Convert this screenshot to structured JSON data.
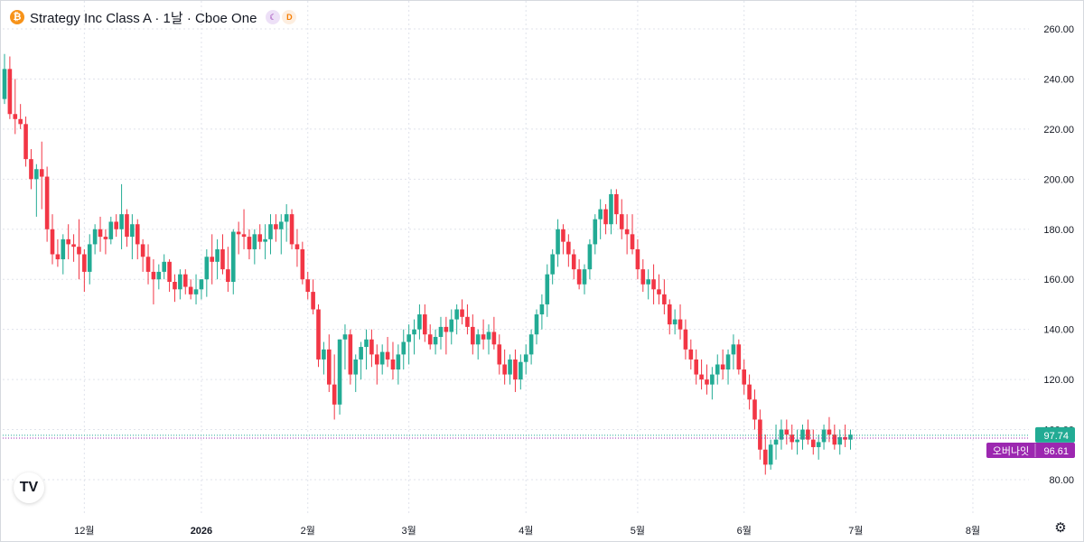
{
  "header": {
    "coin_symbol": "₿",
    "title": "Strategy Inc Class A · 1날 · Cboe One",
    "badge_session": "☾",
    "badge_delay": "D"
  },
  "logo_text": "TV",
  "colors": {
    "up": "#22ab94",
    "down": "#f23645",
    "grid": "#e0e3eb",
    "last_price": "#22ab94",
    "overnight": "#9c27b0"
  },
  "price_tags": {
    "last_price": "97.74",
    "overnight_label": "오버나잇",
    "overnight_price": "96.61"
  },
  "chart_data": {
    "type": "candlestick",
    "title": "Strategy Inc Class A · 1날 · Cboe One",
    "y_ticks": [
      "80.00",
      "100.00",
      "120.00",
      "140.00",
      "160.00",
      "180.00",
      "200.00",
      "220.00",
      "240.00",
      "260.00"
    ],
    "y_tick_values": [
      80,
      100,
      120,
      140,
      160,
      180,
      200,
      220,
      240,
      260
    ],
    "ylim": [
      76,
      270
    ],
    "x_labels": [
      {
        "label": "12월",
        "index": 15,
        "bold": false
      },
      {
        "label": "2026",
        "index": 37,
        "bold": true
      },
      {
        "label": "2월",
        "index": 57,
        "bold": false
      },
      {
        "label": "3월",
        "index": 76,
        "bold": false
      },
      {
        "label": "4월",
        "index": 98,
        "bold": false
      },
      {
        "label": "5월",
        "index": 119,
        "bold": false
      },
      {
        "label": "6월",
        "index": 139,
        "bold": false
      },
      {
        "label": "7월",
        "index": 160,
        "bold": false
      },
      {
        "label": "8월",
        "index": 182,
        "bold": false
      }
    ],
    "grid": true,
    "last_price": 97.74,
    "overnight_price": 96.61,
    "candles": [
      [
        232,
        250,
        230,
        244
      ],
      [
        244,
        249,
        224,
        226
      ],
      [
        226,
        240,
        218,
        224
      ],
      [
        224,
        230,
        220,
        222
      ],
      [
        222,
        225,
        205,
        208
      ],
      [
        208,
        212,
        196,
        200
      ],
      [
        200,
        206,
        185,
        204
      ],
      [
        204,
        215,
        188,
        201
      ],
      [
        201,
        205,
        175,
        180
      ],
      [
        180,
        186,
        166,
        170
      ],
      [
        170,
        176,
        165,
        168
      ],
      [
        168,
        178,
        162,
        176
      ],
      [
        176,
        182,
        168,
        174
      ],
      [
        174,
        178,
        167,
        173
      ],
      [
        173,
        184,
        160,
        170
      ],
      [
        170,
        172,
        155,
        163
      ],
      [
        163,
        178,
        158,
        174
      ],
      [
        174,
        182,
        170,
        180
      ],
      [
        180,
        185,
        171,
        177
      ],
      [
        177,
        180,
        170,
        176
      ],
      [
        176,
        185,
        174,
        183
      ],
      [
        183,
        186,
        177,
        180
      ],
      [
        180,
        198,
        172,
        186
      ],
      [
        186,
        188,
        173,
        177
      ],
      [
        177,
        186,
        168,
        182
      ],
      [
        182,
        184,
        168,
        174
      ],
      [
        174,
        176,
        163,
        169
      ],
      [
        169,
        174,
        158,
        163
      ],
      [
        163,
        168,
        150,
        160
      ],
      [
        160,
        166,
        156,
        163
      ],
      [
        163,
        170,
        160,
        167
      ],
      [
        167,
        168,
        155,
        159
      ],
      [
        159,
        162,
        151,
        156
      ],
      [
        156,
        164,
        152,
        162
      ],
      [
        162,
        164,
        154,
        157
      ],
      [
        157,
        160,
        152,
        154
      ],
      [
        154,
        162,
        150,
        156
      ],
      [
        156,
        160,
        152,
        160
      ],
      [
        160,
        172,
        153,
        169
      ],
      [
        169,
        178,
        158,
        167
      ],
      [
        167,
        176,
        160,
        172
      ],
      [
        172,
        178,
        162,
        164
      ],
      [
        164,
        173,
        155,
        159
      ],
      [
        159,
        180,
        154,
        179
      ],
      [
        179,
        183,
        170,
        178
      ],
      [
        178,
        188,
        172,
        177
      ],
      [
        177,
        180,
        168,
        172
      ],
      [
        172,
        180,
        166,
        178
      ],
      [
        178,
        182,
        172,
        175
      ],
      [
        175,
        182,
        168,
        176
      ],
      [
        176,
        186,
        170,
        182
      ],
      [
        182,
        186,
        175,
        180
      ],
      [
        180,
        186,
        170,
        183
      ],
      [
        183,
        190,
        175,
        186
      ],
      [
        186,
        188,
        172,
        174
      ],
      [
        174,
        180,
        165,
        172
      ],
      [
        172,
        175,
        158,
        160
      ],
      [
        160,
        163,
        152,
        155
      ],
      [
        155,
        160,
        146,
        148
      ],
      [
        148,
        150,
        125,
        128
      ],
      [
        128,
        135,
        122,
        132
      ],
      [
        132,
        138,
        115,
        118
      ],
      [
        118,
        130,
        104,
        110
      ],
      [
        110,
        136,
        106,
        136
      ],
      [
        136,
        142,
        124,
        138
      ],
      [
        138,
        140,
        118,
        122
      ],
      [
        122,
        130,
        115,
        128
      ],
      [
        128,
        135,
        120,
        133
      ],
      [
        133,
        140,
        124,
        136
      ],
      [
        136,
        140,
        125,
        130
      ],
      [
        130,
        134,
        118,
        126
      ],
      [
        126,
        134,
        122,
        131
      ],
      [
        131,
        137,
        125,
        128
      ],
      [
        128,
        135,
        120,
        124
      ],
      [
        124,
        134,
        118,
        130
      ],
      [
        130,
        140,
        124,
        135
      ],
      [
        135,
        142,
        126,
        138
      ],
      [
        138,
        144,
        130,
        140
      ],
      [
        140,
        150,
        136,
        146
      ],
      [
        146,
        150,
        135,
        138
      ],
      [
        138,
        142,
        132,
        134
      ],
      [
        134,
        140,
        130,
        137
      ],
      [
        137,
        145,
        132,
        141
      ],
      [
        141,
        145,
        130,
        139
      ],
      [
        139,
        148,
        134,
        144
      ],
      [
        144,
        150,
        138,
        148
      ],
      [
        148,
        152,
        142,
        145
      ],
      [
        145,
        150,
        138,
        141
      ],
      [
        141,
        146,
        130,
        134
      ],
      [
        134,
        140,
        128,
        138
      ],
      [
        138,
        144,
        132,
        136
      ],
      [
        136,
        142,
        130,
        139
      ],
      [
        139,
        145,
        132,
        134
      ],
      [
        134,
        138,
        122,
        126
      ],
      [
        126,
        132,
        118,
        122
      ],
      [
        122,
        130,
        118,
        128
      ],
      [
        128,
        132,
        115,
        120
      ],
      [
        120,
        130,
        116,
        127
      ],
      [
        127,
        134,
        122,
        130
      ],
      [
        130,
        140,
        126,
        138
      ],
      [
        138,
        148,
        134,
        146
      ],
      [
        146,
        154,
        140,
        150
      ],
      [
        150,
        166,
        145,
        162
      ],
      [
        162,
        172,
        158,
        170
      ],
      [
        170,
        184,
        165,
        180
      ],
      [
        180,
        182,
        170,
        175
      ],
      [
        175,
        178,
        165,
        170
      ],
      [
        170,
        172,
        160,
        164
      ],
      [
        164,
        168,
        156,
        158
      ],
      [
        158,
        166,
        154,
        164
      ],
      [
        164,
        176,
        160,
        174
      ],
      [
        174,
        186,
        170,
        184
      ],
      [
        184,
        192,
        176,
        188
      ],
      [
        188,
        190,
        178,
        182
      ],
      [
        182,
        196,
        178,
        194
      ],
      [
        194,
        196,
        182,
        186
      ],
      [
        186,
        192,
        176,
        180
      ],
      [
        180,
        186,
        170,
        178
      ],
      [
        178,
        186,
        170,
        172
      ],
      [
        172,
        176,
        160,
        164
      ],
      [
        164,
        168,
        155,
        158
      ],
      [
        158,
        164,
        152,
        160
      ],
      [
        160,
        166,
        150,
        156
      ],
      [
        156,
        162,
        150,
        154
      ],
      [
        154,
        160,
        146,
        150
      ],
      [
        150,
        152,
        138,
        142
      ],
      [
        142,
        148,
        138,
        144
      ],
      [
        144,
        150,
        136,
        140
      ],
      [
        140,
        144,
        128,
        132
      ],
      [
        132,
        136,
        124,
        128
      ],
      [
        128,
        132,
        118,
        122
      ],
      [
        122,
        128,
        116,
        120
      ],
      [
        120,
        126,
        114,
        118
      ],
      [
        118,
        125,
        112,
        122
      ],
      [
        122,
        130,
        118,
        126
      ],
      [
        126,
        132,
        120,
        124
      ],
      [
        124,
        132,
        118,
        130
      ],
      [
        130,
        138,
        124,
        134
      ],
      [
        134,
        136,
        122,
        124
      ],
      [
        124,
        128,
        114,
        118
      ],
      [
        118,
        122,
        108,
        112
      ],
      [
        112,
        116,
        100,
        104
      ],
      [
        104,
        108,
        88,
        92
      ],
      [
        92,
        98,
        82,
        86
      ],
      [
        86,
        96,
        84,
        94
      ],
      [
        94,
        102,
        88,
        96
      ],
      [
        96,
        104,
        92,
        100
      ],
      [
        100,
        104,
        94,
        98
      ],
      [
        98,
        102,
        92,
        95
      ],
      [
        95,
        100,
        90,
        96
      ],
      [
        96,
        102,
        92,
        100
      ],
      [
        100,
        104,
        94,
        96
      ],
      [
        96,
        100,
        90,
        93
      ],
      [
        93,
        98,
        88,
        95
      ],
      [
        95,
        102,
        92,
        100
      ],
      [
        100,
        105,
        95,
        98
      ],
      [
        98,
        102,
        92,
        94
      ],
      [
        94,
        100,
        90,
        97
      ],
      [
        97,
        102,
        93,
        96
      ],
      [
        96,
        100,
        92,
        98
      ]
    ]
  }
}
